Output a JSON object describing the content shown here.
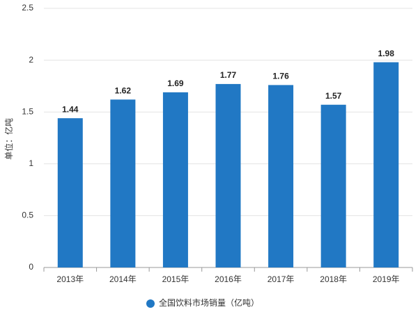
{
  "chart_data": {
    "type": "bar",
    "y_axis_label": "单位：亿吨",
    "categories": [
      "2013年",
      "2014年",
      "2015年",
      "2016年",
      "2017年",
      "2018年",
      "2019年"
    ],
    "series": [
      {
        "name": "全国饮料市场销量（亿吨）",
        "color": "#2178c4",
        "values": [
          1.44,
          1.62,
          1.69,
          1.77,
          1.76,
          1.57,
          1.98
        ]
      }
    ],
    "ylim": [
      0,
      2.5
    ],
    "yticks": [
      0,
      0.5,
      1,
      1.5,
      2,
      2.5
    ],
    "grid": true,
    "legend": "bottom"
  }
}
